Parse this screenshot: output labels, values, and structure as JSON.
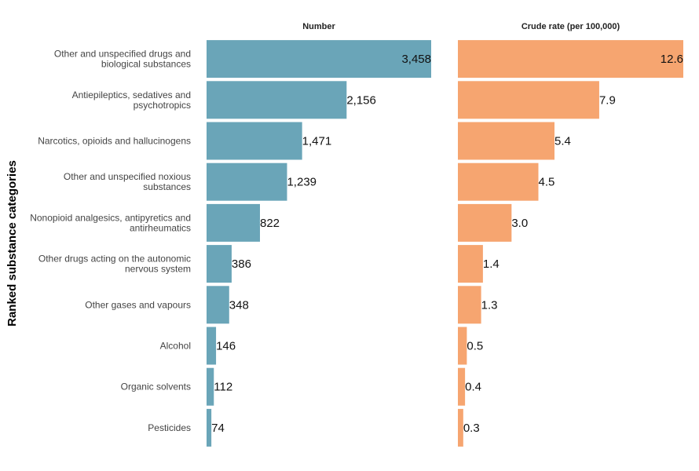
{
  "chart_data": {
    "type": "bar",
    "orientation": "horizontal",
    "ylabel": "Ranked substance categories",
    "categories": [
      [
        "Other and unspecified drugs and",
        "biological substances"
      ],
      [
        "Antiepileptics, sedatives and",
        "psychotropics"
      ],
      [
        "Narcotics, opioids and hallucinogens"
      ],
      [
        "Other and unspecified noxious",
        "substances"
      ],
      [
        "Nonopioid analgesics, antipyretics and",
        "antirheumatics"
      ],
      [
        "Other drugs acting on the autonomic",
        "nervous system"
      ],
      [
        "Other gases and vapours"
      ],
      [
        "Alcohol"
      ],
      [
        "Organic solvents"
      ],
      [
        "Pesticides"
      ]
    ],
    "panels": [
      {
        "title": "Number",
        "color": "#6aa5b8",
        "values": [
          3458,
          2156,
          1471,
          1239,
          822,
          386,
          348,
          146,
          112,
          74
        ],
        "value_labels": [
          "3,458",
          "2,156",
          "1,471",
          "1,239",
          "822",
          "386",
          "348",
          "146",
          "112",
          "74"
        ]
      },
      {
        "title": "Crude rate (per 100,000)",
        "color": "#f6a570",
        "values": [
          12.6,
          7.9,
          5.4,
          4.5,
          3.0,
          1.4,
          1.3,
          0.5,
          0.4,
          0.3
        ],
        "value_labels": [
          "12.6",
          "7.9",
          "5.4",
          "4.5",
          "3.0",
          "1.4",
          "1.3",
          "0.5",
          "0.4",
          "0.3"
        ]
      }
    ],
    "grid": false,
    "legend": "none"
  }
}
